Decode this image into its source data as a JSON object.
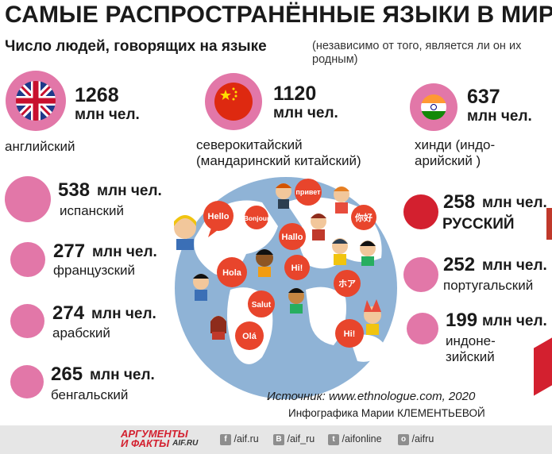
{
  "title": "САМЫЕ РАСПРОСТРАНЁННЫЕ ЯЗЫКИ В МИРЕ",
  "subtitle": "Число людей, говорящих на языке",
  "note": "(независимо от того, является ли он их родным)",
  "colors": {
    "circle": "#e277a8",
    "russian": "#d3202f",
    "bubble": "#e8452c",
    "globe": "#8fb3d6",
    "land": "#ffffff"
  },
  "chart_data": {
    "type": "bubble",
    "unit": "млн чел.",
    "categories": [
      "английский",
      "северокитайский (мандаринский китайский)",
      "хинди (индо-арийский )",
      "испанский",
      "французский",
      "арабский",
      "бенгальский",
      "русский",
      "португальский",
      "индонезийский"
    ],
    "values": [
      1268,
      1120,
      637,
      538,
      277,
      274,
      265,
      258,
      252,
      199
    ]
  },
  "items": [
    {
      "value": "1268",
      "unit": "млн чел.",
      "label": "английский",
      "icon": "uk-flag-icon"
    },
    {
      "value": "1120",
      "unit": "млн чел.",
      "label1": "северокитайский",
      "label2": "(мандаринский китайский)",
      "icon": "china-flag-icon"
    },
    {
      "value": "637",
      "unit": "млн чел.",
      "label1": "хинди (индо-",
      "label2": "арийский )",
      "icon": "india-flag-icon"
    },
    {
      "value": "538",
      "unit": "млн чел.",
      "label": "испанский"
    },
    {
      "value": "277",
      "unit": "млн чел.",
      "label": "французский"
    },
    {
      "value": "274",
      "unit": "млн чел.",
      "label": "арабский"
    },
    {
      "value": "265",
      "unit": "млн чел.",
      "label": "бенгальский"
    },
    {
      "value": "258",
      "unit": "млн чел.",
      "label": "РУССКИЙ"
    },
    {
      "value": "252",
      "unit": "млн чел.",
      "label": "португальский"
    },
    {
      "value": "199",
      "unit": "млн чел.",
      "label1": "индоне-",
      "label2": "зийский"
    }
  ],
  "bubbles": [
    "Hello",
    "Bonjour",
    "привет",
    "Hallo",
    "你好",
    "Hola",
    "Hi!",
    "ホア",
    "Salut",
    "Hi!",
    "Olá"
  ],
  "source": "Источник: www.ethnologue.com, 2020",
  "credit": "Инфографика Марии КЛЕМЕНТЬЕВОЙ",
  "footer": {
    "logo_line1": "АРГУМЕНТЫ",
    "logo_line2": "И ФАКТЫ",
    "logo_site": "AIF.RU",
    "links": [
      {
        "icon": "f",
        "text": "/aif.ru",
        "name": "facebook-icon"
      },
      {
        "icon": "В",
        "text": "/aif_ru",
        "name": "vk-icon"
      },
      {
        "icon": "t",
        "text": "/aifonline",
        "name": "twitter-icon"
      },
      {
        "icon": "о",
        "text": "/aifru",
        "name": "odnoklassniki-icon"
      }
    ]
  }
}
